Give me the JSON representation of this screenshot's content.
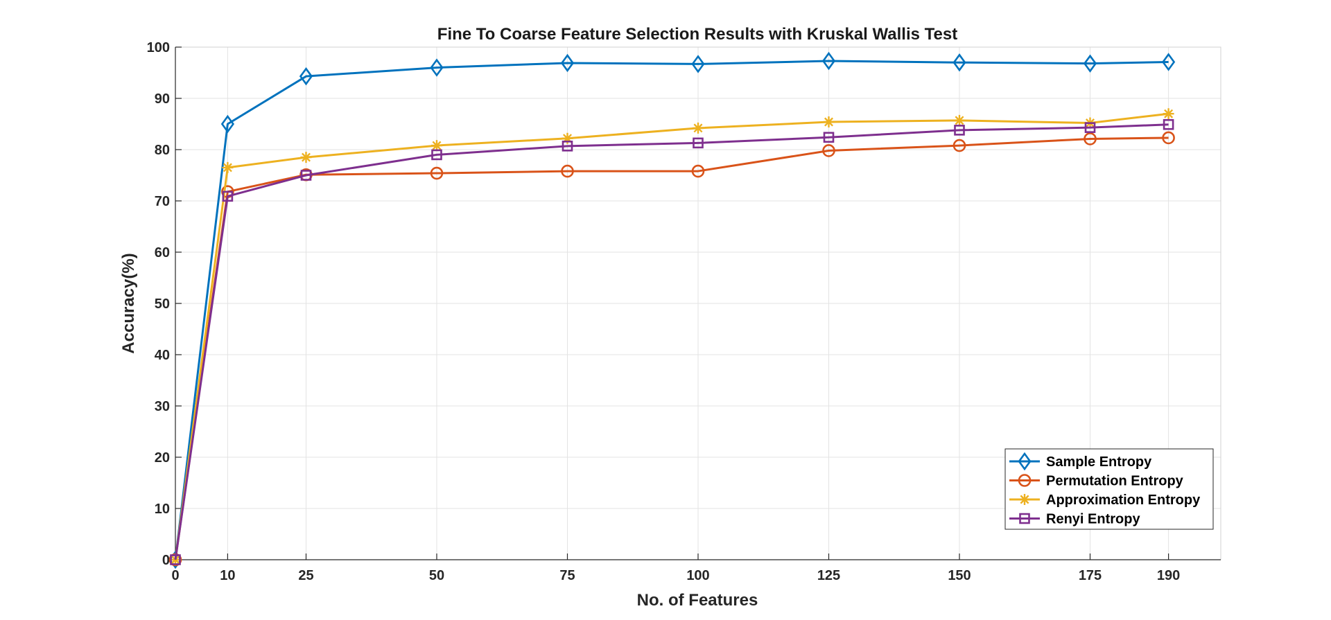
{
  "chart_data": {
    "type": "line",
    "title": "Fine To Coarse Feature Selection Results with Kruskal Wallis Test",
    "xlabel": "No. of Features",
    "ylabel": "Accuracy(%)",
    "x": [
      0,
      10,
      25,
      50,
      75,
      100,
      125,
      150,
      175,
      190
    ],
    "xticks": [
      0,
      10,
      25,
      50,
      75,
      100,
      125,
      150,
      175,
      190
    ],
    "yticks": [
      0,
      10,
      20,
      30,
      40,
      50,
      60,
      70,
      80,
      90,
      100
    ],
    "xlim": [
      0,
      200
    ],
    "ylim": [
      0,
      100
    ],
    "grid": true,
    "legend_position": "bottom-right",
    "series": [
      {
        "name": "Sample Entropy",
        "color": "#0072BD",
        "marker": "diamond",
        "values": [
          0,
          85.0,
          94.3,
          96.0,
          96.9,
          96.7,
          97.3,
          97.0,
          96.8,
          97.1
        ]
      },
      {
        "name": "Permutation Entropy",
        "color": "#D95319",
        "marker": "circle",
        "values": [
          0,
          71.8,
          75.1,
          75.4,
          75.8,
          75.8,
          79.8,
          80.8,
          82.1,
          82.3
        ]
      },
      {
        "name": "Approximation Entropy",
        "color": "#EDB120",
        "marker": "asterisk",
        "values": [
          0,
          76.5,
          78.5,
          80.8,
          82.2,
          84.2,
          85.4,
          85.7,
          85.2,
          87.0
        ]
      },
      {
        "name": "Renyi Entropy",
        "color": "#7E2F8E",
        "marker": "square",
        "values": [
          0,
          70.9,
          75.0,
          79.0,
          80.7,
          81.3,
          82.4,
          83.8,
          84.3,
          84.9
        ]
      }
    ]
  }
}
